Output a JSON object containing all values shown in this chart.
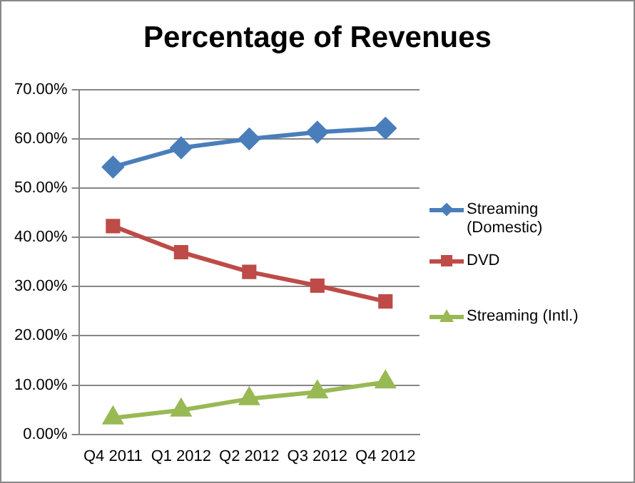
{
  "chart_data": {
    "type": "line",
    "title": "Percentage of Revenues",
    "categories": [
      "Q4 2011",
      "Q1 2012",
      "Q2 2012",
      "Q3 2012",
      "Q4 2012"
    ],
    "series": [
      {
        "name": "Streaming (Domestic)",
        "color": "#4a7ebb",
        "marker": "diamond",
        "values": [
          54.3,
          58.2,
          60.0,
          61.4,
          62.2
        ]
      },
      {
        "name": "DVD",
        "color": "#be4b48",
        "marker": "square",
        "values": [
          42.3,
          37.0,
          33.0,
          30.2,
          27.0
        ]
      },
      {
        "name": "Streaming (Intl.)",
        "color": "#98b954",
        "marker": "triangle",
        "values": [
          3.3,
          4.9,
          7.2,
          8.6,
          10.6
        ]
      }
    ],
    "ylim": [
      0,
      70
    ],
    "yticks": [
      {
        "value": 0,
        "label": "0.00%"
      },
      {
        "value": 10,
        "label": "10.00%"
      },
      {
        "value": 20,
        "label": "20.00%"
      },
      {
        "value": 30,
        "label": "30.00%"
      },
      {
        "value": 40,
        "label": "40.00%"
      },
      {
        "value": 50,
        "label": "50.00%"
      },
      {
        "value": 60,
        "label": "60.00%"
      },
      {
        "value": 70,
        "label": "70.00%"
      }
    ],
    "grid": "y",
    "legend": "right",
    "line_style": "solid"
  }
}
